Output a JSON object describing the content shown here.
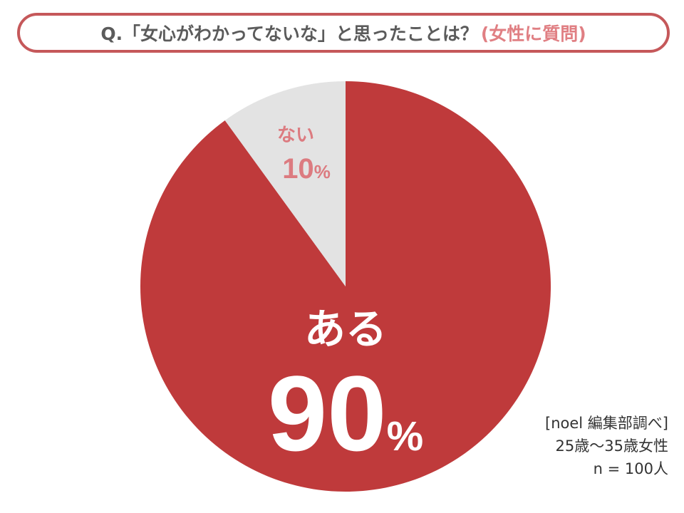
{
  "title": {
    "question": "Q.「女心がわかってないな」と思ったことは？",
    "audience": "(女性に質問)"
  },
  "chart_data": {
    "type": "pie",
    "slices": [
      {
        "label": "ある",
        "value": 90,
        "value_text": "90",
        "unit": "%",
        "color": "#bf3a3b",
        "label_color": "#ffffff"
      },
      {
        "label": "ない",
        "value": 10,
        "value_text": "10",
        "unit": "%",
        "color": "#e3e3e3",
        "label_color": "#dc7b80"
      }
    ],
    "start": "12 o'clock",
    "direction": "clockwise"
  },
  "source": {
    "line1": "[noel 編集部調べ]",
    "line2": "25歳〜35歳女性",
    "line3": "n = 100人"
  }
}
